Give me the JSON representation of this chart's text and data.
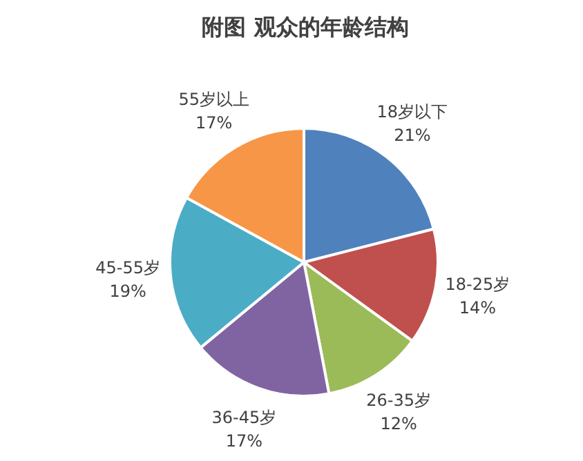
{
  "chart_data": {
    "type": "pie",
    "title": "附图 观众的年龄结构",
    "categories": [
      "18岁以下",
      "18-25岁",
      "26-35岁",
      "36-45岁",
      "45-55岁",
      "55岁以上"
    ],
    "values": [
      21,
      14,
      12,
      17,
      19,
      17
    ],
    "colors": [
      "#4f81bd",
      "#c0504d",
      "#9bbb59",
      "#8064a2",
      "#4bacc6",
      "#f79646"
    ],
    "value_labels": [
      "21%",
      "14%",
      "12%",
      "17%",
      "19%",
      "17%"
    ]
  }
}
